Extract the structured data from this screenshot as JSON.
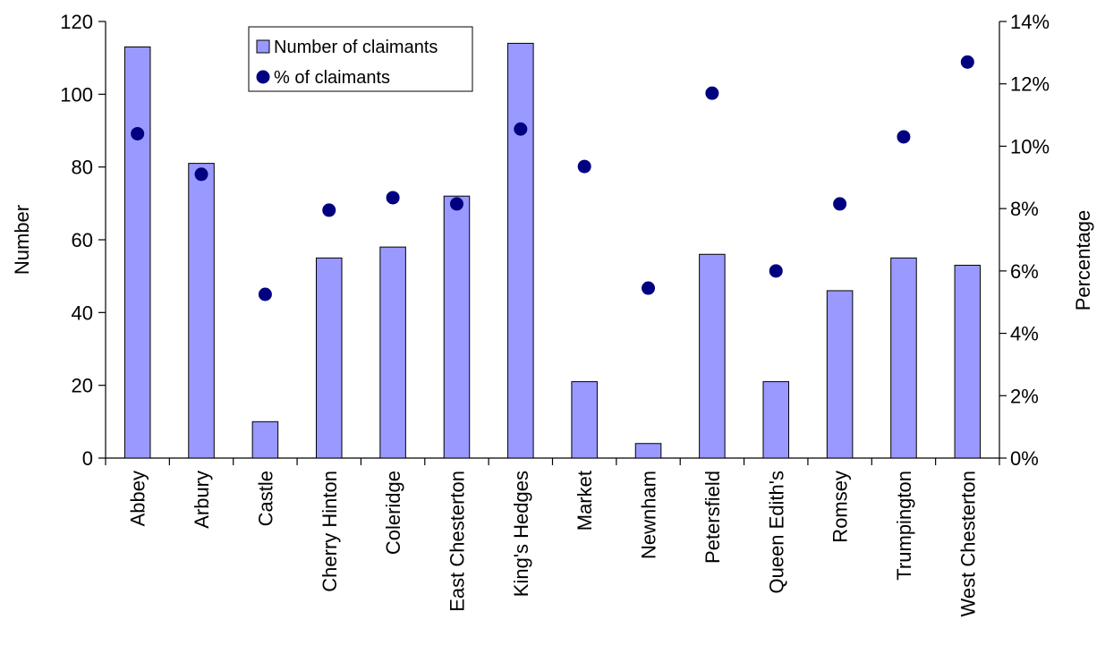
{
  "chart_data": {
    "type": "bar",
    "categories": [
      "Abbey",
      "Arbury",
      "Castle",
      "Cherry Hinton",
      "Coleridge",
      "East Chesterton",
      "King's Hedges",
      "Market",
      "Newnham",
      "Petersfield",
      "Queen Edith's",
      "Romsey",
      "Trumpington",
      "West Chesterton"
    ],
    "series": [
      {
        "name": "Number of claimants",
        "type": "bar",
        "axis": "left",
        "color": "#9999ff",
        "values": [
          113,
          81,
          10,
          55,
          58,
          72,
          114,
          21,
          4,
          56,
          21,
          46,
          55,
          53
        ]
      },
      {
        "name": "% of claimants",
        "type": "scatter",
        "axis": "right",
        "color": "#000080",
        "values": [
          10.4,
          9.1,
          5.25,
          7.95,
          8.35,
          8.15,
          10.55,
          9.35,
          5.45,
          11.7,
          6.0,
          8.15,
          10.3,
          12.7
        ]
      }
    ],
    "ylabel": "Number",
    "y2label": "Percentage",
    "ylim": [
      0,
      120
    ],
    "y2lim": [
      0,
      14
    ],
    "yticks": [
      "0",
      "20",
      "40",
      "60",
      "80",
      "100",
      "120"
    ],
    "y2ticks": [
      "0%",
      "2%",
      "4%",
      "6%",
      "8%",
      "10%",
      "12%",
      "14%"
    ],
    "grid": false,
    "legend_position": "top-center"
  }
}
